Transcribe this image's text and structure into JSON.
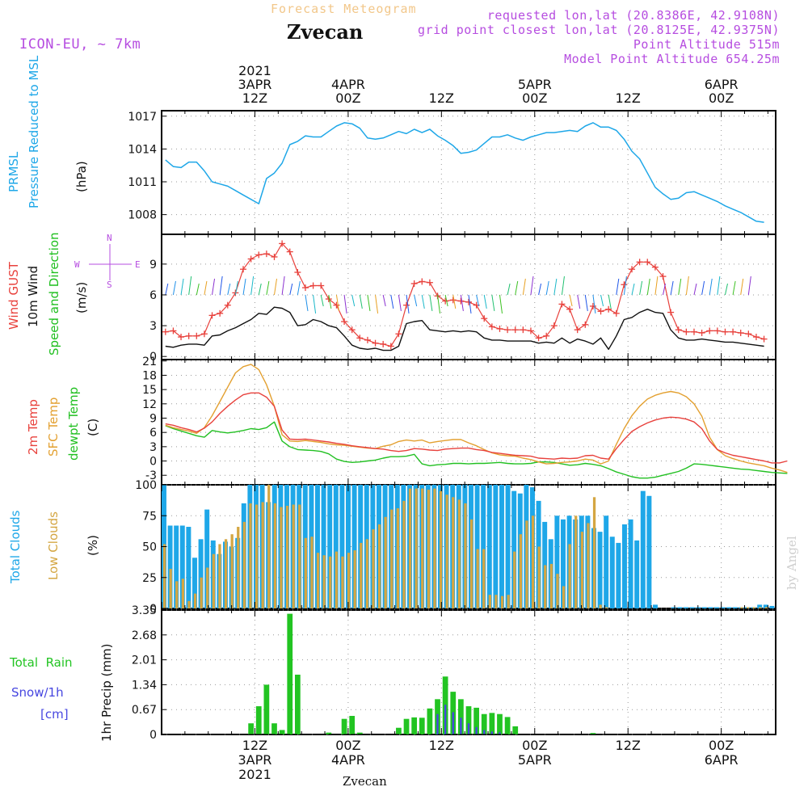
{
  "header": {
    "super_title": "Forecast Meteogram",
    "location": "Zvecan",
    "model": "ICON-EU, ~ 7km",
    "info": [
      "requested lon,lat (20.8386E, 42.9108N)",
      "grid point closest lon,lat (20.8125E, 42.9375N)",
      "Point Altitude 515m",
      "Model Point Altitude 654.25m"
    ]
  },
  "footer": {
    "location": "Zvecan",
    "credit": "by Angel"
  },
  "time_axis": {
    "top": [
      {
        "hour": 12,
        "lines": [
          "2021",
          "3APR",
          "12Z"
        ]
      },
      {
        "hour": 24,
        "lines": [
          "4APR",
          "00Z"
        ]
      },
      {
        "hour": 36,
        "lines": [
          "12Z"
        ]
      },
      {
        "hour": 48,
        "lines": [
          "5APR",
          "00Z"
        ]
      },
      {
        "hour": 60,
        "lines": [
          "12Z"
        ]
      },
      {
        "hour": 72,
        "lines": [
          "6APR",
          "00Z"
        ]
      }
    ],
    "bottom": [
      {
        "hour": 12,
        "lines": [
          "12Z",
          "3APR",
          "2021"
        ]
      },
      {
        "hour": 24,
        "lines": [
          "00Z",
          "4APR"
        ]
      },
      {
        "hour": 36,
        "lines": [
          "12Z"
        ]
      },
      {
        "hour": 48,
        "lines": [
          "00Z",
          "5APR"
        ]
      },
      {
        "hour": 60,
        "lines": [
          "12Z"
        ]
      },
      {
        "hour": 72,
        "lines": [
          "00Z",
          "6APR"
        ]
      }
    ]
  },
  "colors": {
    "pressure": "#1ea7e8",
    "gust": "#e8413c",
    "wind": "#111111",
    "dir_label": "#1fbf1f",
    "temp2m": "#e8413c",
    "sfc": "#e3a030",
    "dewpt": "#22c022",
    "total_clouds": "#1ea7e8",
    "low_clouds": "#d4a642",
    "rain": "#22c422",
    "snow": "#4646e0",
    "purple": "#b64de0"
  },
  "chart_data": [
    {
      "type": "line",
      "name": "pressure",
      "title": "",
      "ylabel_lines": [
        "PRMSL",
        "Pressure Reduced to MSL"
      ],
      "units": "(hPa)",
      "yticks": [
        1008,
        1011,
        1014,
        1017
      ],
      "ylim": [
        1006.2,
        1017.5
      ],
      "x_start": 0.5,
      "x_step": 1,
      "series": [
        {
          "values": [
            1013.0,
            1012.4,
            1012.3,
            1012.8,
            1012.8,
            1012.0,
            1011.0,
            1010.8,
            1010.6,
            1010.2,
            1009.8,
            1009.4,
            1009.0,
            1011.3,
            1011.8,
            1012.7,
            1014.4,
            1014.7,
            1015.2,
            1015.1,
            1015.1,
            1015.6,
            1016.1,
            1016.4,
            1016.3,
            1015.9,
            1015.0,
            1014.9,
            1015.0,
            1015.3,
            1015.6,
            1015.4,
            1015.8,
            1015.5,
            1015.8,
            1015.2,
            1014.8,
            1014.3,
            1013.6,
            1013.7,
            1013.9,
            1014.5,
            1015.1,
            1015.1,
            1015.3,
            1015.0,
            1014.8,
            1015.1,
            1015.3,
            1015.5,
            1015.5,
            1015.6,
            1015.7,
            1015.6,
            1016.1,
            1016.4,
            1016.0,
            1016.0,
            1015.7,
            1014.9,
            1013.8,
            1013.1,
            1011.8,
            1010.5,
            1009.9,
            1009.4,
            1009.5,
            1010.0,
            1010.1,
            1009.8,
            1009.5,
            1009.2,
            1008.8,
            1008.5,
            1008.2,
            1007.8,
            1007.4,
            1007.3
          ]
        }
      ]
    },
    {
      "type": "line",
      "name": "wind",
      "title": "",
      "ylabel_lines": [
        "Wind GUST",
        "10m Wind",
        "Speed and Direction"
      ],
      "units": "(m/s)",
      "yticks": [
        0,
        3,
        6,
        9
      ],
      "ylim": [
        -0.3,
        11.9
      ],
      "x_start": 0.5,
      "x_step": 1,
      "series": [
        {
          "name": "Wind GUST",
          "values": [
            2.4,
            2.5,
            1.9,
            2.0,
            2.0,
            2.2,
            4.0,
            4.2,
            5.0,
            6.2,
            8.5,
            9.5,
            9.9,
            10.0,
            9.7,
            11.0,
            10.2,
            8.2,
            6.7,
            6.9,
            6.9,
            5.6,
            5.0,
            3.4,
            2.6,
            1.8,
            1.6,
            1.3,
            1.2,
            1.0,
            2.2,
            5.0,
            7.1,
            7.3,
            7.2,
            5.9,
            5.4,
            5.5,
            5.4,
            5.3,
            5.0,
            3.7,
            2.9,
            2.7,
            2.6,
            2.6,
            2.6,
            2.5,
            1.8,
            2.0,
            3.0,
            5.1,
            4.6,
            2.6,
            3.1,
            4.9,
            4.4,
            4.6,
            4.2,
            7.0,
            8.5,
            9.2,
            9.2,
            8.7,
            7.8,
            4.3,
            2.6,
            2.4,
            2.4,
            2.3,
            2.5,
            2.5,
            2.4,
            2.4,
            2.3,
            2.2,
            1.9,
            1.7
          ]
        },
        {
          "name": "10m Wind",
          "values": [
            1.0,
            0.9,
            1.1,
            1.2,
            1.2,
            1.1,
            2.0,
            2.1,
            2.5,
            2.8,
            3.2,
            3.6,
            4.2,
            4.1,
            4.8,
            4.7,
            4.3,
            3.0,
            3.1,
            3.6,
            3.4,
            3.0,
            2.8,
            2.0,
            1.1,
            0.8,
            0.7,
            0.8,
            0.6,
            0.6,
            1.0,
            3.2,
            3.4,
            3.5,
            2.6,
            2.5,
            2.4,
            2.5,
            2.4,
            2.5,
            2.4,
            1.8,
            1.6,
            1.6,
            1.5,
            1.5,
            1.5,
            1.5,
            1.3,
            1.4,
            1.3,
            1.8,
            1.3,
            1.7,
            1.5,
            1.2,
            1.8,
            0.7,
            2.0,
            3.6,
            3.8,
            4.3,
            4.6,
            4.3,
            4.2,
            2.6,
            1.8,
            1.6,
            1.6,
            1.7,
            1.6,
            1.5,
            1.4,
            1.4,
            1.3,
            1.2,
            1.1,
            1.0
          ]
        }
      ]
    },
    {
      "type": "line",
      "name": "temperature",
      "title": "",
      "ylabel_lines": [
        "2m Temp",
        "SFC Temp",
        "dewpt Temp"
      ],
      "units": "(C)",
      "yticks": [
        -3,
        0,
        3,
        6,
        9,
        12,
        15,
        18,
        21
      ],
      "ylim": [
        -5,
        21.3
      ],
      "x_start": 0.5,
      "x_step": 1,
      "series": [
        {
          "name": "2m Temp",
          "values": [
            7.8,
            7.5,
            7.0,
            6.6,
            6.1,
            6.9,
            8.2,
            10.0,
            11.5,
            12.8,
            13.9,
            14.3,
            14.3,
            13.4,
            11.5,
            6.5,
            4.6,
            4.5,
            4.6,
            4.4,
            4.2,
            4.0,
            3.7,
            3.5,
            3.2,
            3.0,
            2.8,
            2.6,
            2.5,
            2.2,
            2.0,
            2.2,
            2.6,
            2.5,
            2.3,
            2.2,
            2.5,
            2.6,
            2.7,
            2.7,
            2.4,
            2.2,
            1.8,
            1.6,
            1.4,
            1.2,
            1.1,
            1.0,
            0.6,
            0.5,
            0.4,
            0.6,
            0.5,
            0.6,
            1.1,
            1.2,
            0.6,
            0.4,
            2.6,
            4.5,
            6.2,
            7.2,
            8.0,
            8.6,
            9.0,
            9.2,
            9.1,
            8.8,
            8.2,
            6.8,
            4.2,
            2.4,
            1.7,
            1.2,
            0.9,
            0.6,
            0.3,
            0.0,
            -0.4,
            -0.4,
            0.0
          ]
        },
        {
          "name": "SFC Temp",
          "values": [
            7.5,
            7.0,
            6.6,
            6.3,
            5.8,
            7.0,
            9.5,
            12.5,
            15.5,
            18.5,
            19.8,
            20.3,
            19.2,
            16.0,
            11.5,
            5.5,
            4.2,
            4.1,
            4.3,
            4.1,
            3.9,
            3.6,
            3.4,
            3.3,
            3.1,
            2.9,
            2.7,
            2.6,
            3.1,
            3.4,
            4.1,
            4.4,
            4.2,
            4.4,
            3.8,
            4.1,
            4.3,
            4.5,
            4.5,
            3.8,
            3.2,
            2.4,
            1.7,
            1.3,
            1.1,
            1.0,
            0.6,
            0.3,
            -0.2,
            -0.6,
            -0.5,
            -0.3,
            -0.2,
            0.0,
            0.4,
            0.2,
            -0.6,
            0.0,
            3.5,
            6.8,
            9.5,
            11.5,
            13.0,
            13.8,
            14.3,
            14.6,
            14.3,
            13.5,
            12.0,
            9.4,
            5.0,
            2.4,
            1.1,
            0.5,
            0.0,
            -0.4,
            -0.7,
            -1.0,
            -1.5,
            -1.9,
            -2.4
          ]
        },
        {
          "name": "dewpt Temp",
          "values": [
            7.4,
            6.8,
            6.3,
            5.8,
            5.3,
            5.0,
            6.4,
            6.1,
            5.9,
            6.1,
            6.4,
            6.8,
            6.6,
            7.0,
            8.2,
            4.2,
            3.0,
            2.4,
            2.3,
            2.2,
            2.0,
            1.5,
            0.4,
            -0.1,
            -0.3,
            -0.2,
            0.0,
            0.2,
            0.6,
            0.9,
            0.9,
            1.0,
            1.4,
            -0.6,
            -1.0,
            -0.8,
            -0.7,
            -0.5,
            -0.5,
            -0.6,
            -0.5,
            -0.5,
            -0.4,
            -0.3,
            -0.5,
            -0.6,
            -0.6,
            -0.5,
            -0.2,
            -0.2,
            -0.3,
            -0.6,
            -0.9,
            -0.8,
            -0.5,
            -0.7,
            -1.0,
            -1.6,
            -2.3,
            -2.8,
            -3.3,
            -3.6,
            -3.6,
            -3.4,
            -3.0,
            -2.6,
            -2.2,
            -1.5,
            -0.6,
            -0.7,
            -0.9,
            -1.1,
            -1.3,
            -1.5,
            -1.7,
            -1.8,
            -2.0,
            -2.2,
            -2.4,
            -2.5,
            -2.6
          ]
        }
      ]
    },
    {
      "type": "bar",
      "name": "clouds",
      "title": "",
      "ylabel_lines": [
        "Total Clouds",
        "Low Clouds"
      ],
      "units": "(%)",
      "yticks": [
        0,
        25,
        50,
        75,
        100
      ],
      "ylim": [
        0,
        100
      ],
      "x_start": 0,
      "x_step": 1,
      "series": [
        {
          "name": "Total Clouds",
          "values": [
            100,
            67,
            67,
            67,
            66,
            41,
            56,
            80,
            55,
            44,
            54,
            50,
            57,
            85,
            100,
            100,
            100,
            86,
            100,
            100,
            100,
            100,
            100,
            100,
            100,
            100,
            100,
            100,
            100,
            100,
            100,
            100,
            100,
            100,
            100,
            100,
            100,
            100,
            100,
            100,
            100,
            100,
            100,
            100,
            100,
            100,
            100,
            100,
            100,
            100,
            100,
            100,
            100,
            100,
            100,
            100,
            100,
            95,
            93,
            100,
            98,
            87,
            70,
            56,
            75,
            72,
            75,
            72,
            75,
            75,
            65,
            62,
            75,
            58,
            53,
            68,
            72,
            55,
            95,
            91,
            3,
            0,
            0,
            1,
            1,
            1,
            1,
            1,
            1,
            1,
            1,
            1,
            1,
            1,
            1,
            1,
            1,
            3,
            3,
            2
          ]
        },
        {
          "name": "Low Clouds",
          "values": [
            52,
            32,
            22,
            24,
            6,
            12,
            25,
            33,
            44,
            52,
            56,
            60,
            66,
            70,
            85,
            84,
            86,
            100,
            85,
            82,
            83,
            84,
            84,
            57,
            58,
            45,
            43,
            42,
            46,
            42,
            45,
            47,
            53,
            56,
            64,
            68,
            74,
            80,
            81,
            87,
            97,
            97,
            97,
            96,
            97,
            95,
            92,
            90,
            88,
            85,
            72,
            48,
            48,
            11,
            11,
            10,
            11,
            46,
            60,
            71,
            75,
            50,
            35,
            36,
            28,
            18,
            52,
            75,
            62,
            69,
            90,
            3,
            1,
            0,
            0,
            0,
            0,
            0,
            0,
            0,
            0,
            0,
            0,
            0,
            0,
            0,
            0,
            0,
            0,
            0,
            0,
            0,
            0,
            0,
            1,
            1,
            1,
            1,
            1,
            0
          ]
        }
      ]
    },
    {
      "type": "bar",
      "name": "precip",
      "title": "",
      "ylabel_lines": [
        "Total  Rain",
        "Snow/1h",
        "[cm]"
      ],
      "yaxis_label": "1hr Precip (mm)",
      "yticks": [
        0,
        0.67,
        1.34,
        2.01,
        2.68,
        3.35
      ],
      "ylim": [
        0,
        3.35
      ],
      "x_start": 0.5,
      "x_step": 1,
      "series": [
        {
          "name": "Total Rain",
          "values": [
            0,
            0,
            0,
            0,
            0,
            0,
            0,
            0,
            0,
            0,
            0,
            0.3,
            0.76,
            1.34,
            0.3,
            0.12,
            3.25,
            1.61,
            0,
            0,
            0,
            0.05,
            0,
            0.42,
            0.5,
            0.05,
            0,
            0,
            0,
            0,
            0.18,
            0.42,
            0.46,
            0.45,
            0.7,
            0.95,
            1.56,
            1.15,
            0.95,
            0.76,
            0.72,
            0.55,
            0.58,
            0.55,
            0.47,
            0.22,
            0,
            0,
            0,
            0,
            0,
            0,
            0,
            0,
            0,
            0.04,
            0,
            0,
            0,
            0,
            0,
            0,
            0,
            0,
            0,
            0,
            0,
            0,
            0,
            0,
            0,
            0,
            0,
            0,
            0,
            0,
            0,
            0
          ]
        },
        {
          "name": "Snow/1h",
          "values": [
            0,
            0,
            0,
            0,
            0,
            0,
            0,
            0,
            0,
            0,
            0,
            0,
            0,
            0,
            0,
            0,
            0,
            0,
            0,
            0,
            0,
            0,
            0,
            0,
            0,
            0,
            0,
            0,
            0,
            0,
            0,
            0,
            0,
            0,
            0,
            0.55,
            0.8,
            0.6,
            0.45,
            0.3,
            0.2,
            0.12,
            0.08,
            0.06,
            0,
            0,
            0,
            0,
            0,
            0,
            0,
            0,
            0,
            0,
            0,
            0,
            0,
            0,
            0,
            0,
            0,
            0,
            0,
            0,
            0,
            0,
            0,
            0,
            0,
            0,
            0,
            0,
            0,
            0,
            0,
            0,
            0,
            0
          ]
        }
      ]
    }
  ]
}
